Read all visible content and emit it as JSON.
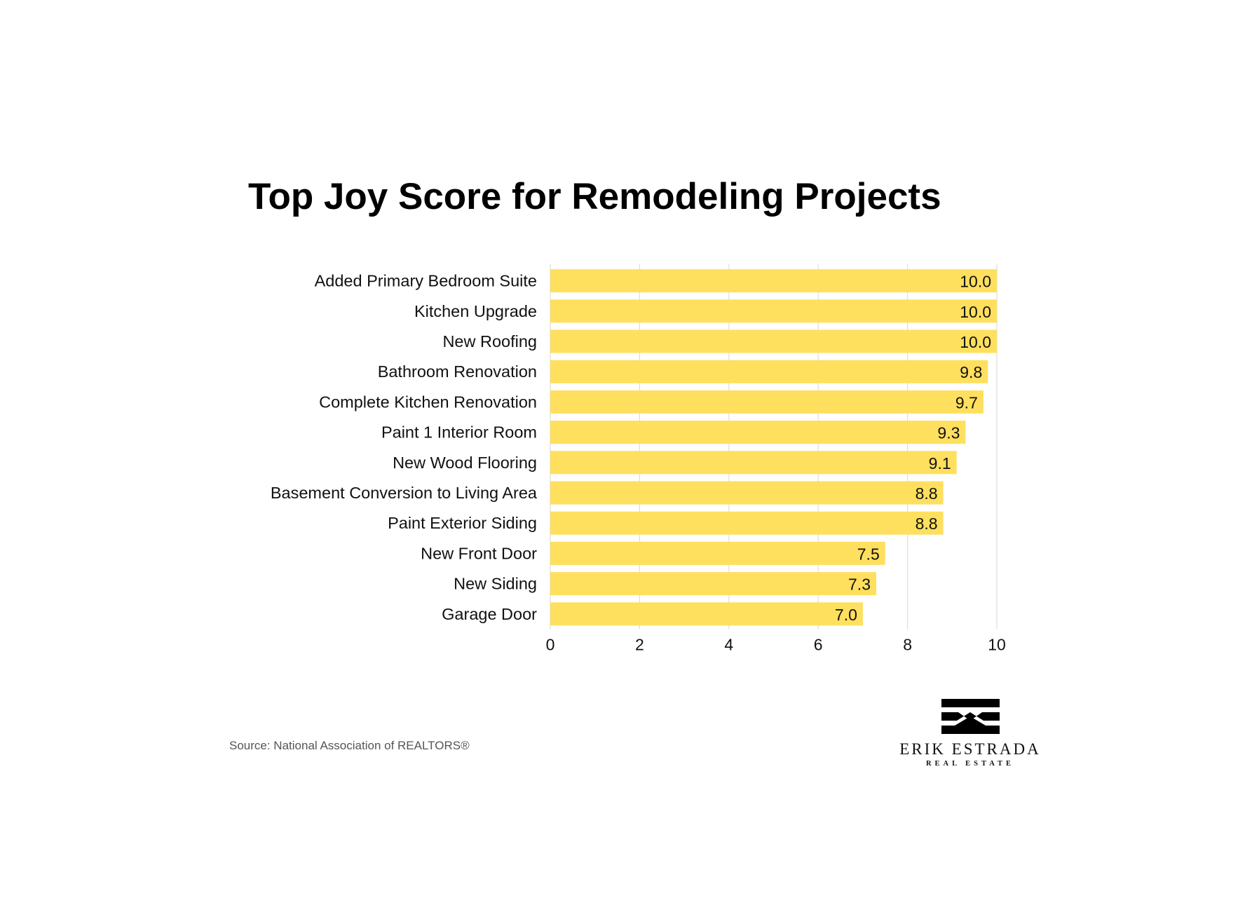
{
  "chart_data": {
    "type": "bar",
    "orientation": "horizontal",
    "title": "Top Joy Score for Remodeling Projects",
    "xlabel": "",
    "ylabel": "",
    "xlim": [
      0,
      10
    ],
    "xticks": [
      "0",
      "2",
      "4",
      "6",
      "8",
      "10"
    ],
    "grid": true,
    "categories": [
      "Added Primary Bedroom Suite",
      "Kitchen Upgrade",
      "New Roofing",
      "Bathroom Renovation",
      "Complete Kitchen Renovation",
      "Paint 1 Interior Room",
      "New Wood Flooring",
      "Basement Conversion to Living Area",
      "Paint Exterior Siding",
      "New Front Door",
      "New Siding",
      "Garage Door"
    ],
    "values": [
      10.0,
      10.0,
      10.0,
      9.8,
      9.7,
      9.3,
      9.1,
      8.8,
      8.8,
      7.5,
      7.3,
      7.0
    ],
    "value_labels": [
      "10.0",
      "10.0",
      "10.0",
      "9.8",
      "9.7",
      "9.3",
      "9.1",
      "8.8",
      "8.8",
      "7.5",
      "7.3",
      "7.0"
    ],
    "bar_color": "#FFDF5E",
    "grid_color": "#DDDDDD"
  },
  "source": "Source: National Association of REALTORS®",
  "logo": {
    "name": "ERIK ESTRADA",
    "tagline": "REAL ESTATE",
    "icon": "house-stripes-logo-icon"
  }
}
